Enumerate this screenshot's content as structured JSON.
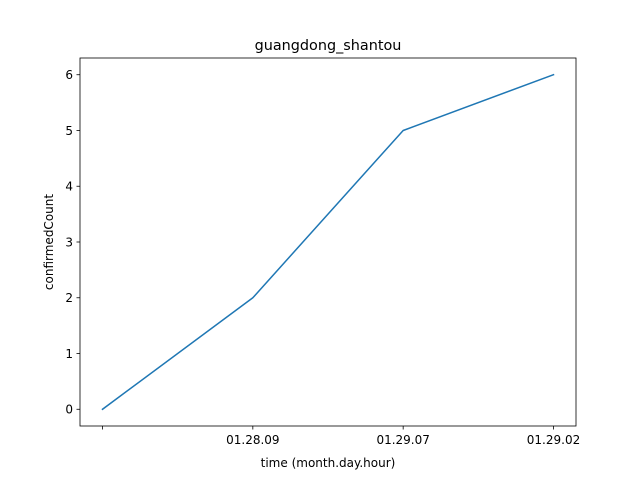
{
  "chart_data": {
    "type": "line",
    "title": "guangdong_shantou",
    "xlabel": "time (month.day.hour)",
    "ylabel": "confirmedCount",
    "categories": [
      "",
      "01.28.09",
      "01.29.07",
      "01.29.02"
    ],
    "series": [
      {
        "values": [
          0,
          2,
          5,
          6
        ],
        "color": "#1f77b4"
      }
    ],
    "ylim": [
      -0.3,
      6.3
    ],
    "yticks": [
      0,
      1,
      2,
      3,
      4,
      5,
      6
    ],
    "grid": false
  }
}
